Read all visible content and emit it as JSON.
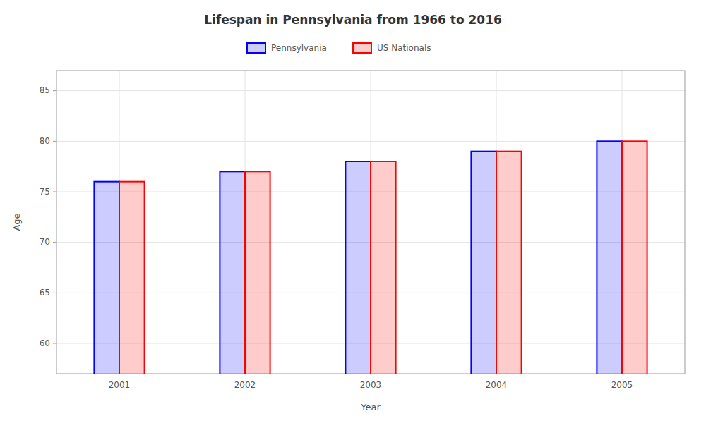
{
  "chart_data": {
    "type": "bar",
    "title": "Lifespan in Pennsylvania from 1966 to 2016",
    "x_label": "Year",
    "y_label": "Age",
    "categories": [
      "2001",
      "2002",
      "2003",
      "2004",
      "2005"
    ],
    "series": [
      {
        "name": "Pennsylvania",
        "color": "#0000ff",
        "values": [
          76,
          77,
          78,
          79,
          80
        ]
      },
      {
        "name": "US Nationals",
        "color": "#ff0000",
        "values": [
          76,
          77,
          78,
          79,
          80
        ]
      }
    ],
    "ylim": [
      57,
      87
    ],
    "yticks": [
      60,
      65,
      70,
      75,
      80,
      85
    ],
    "grid": true,
    "legend": "top"
  }
}
